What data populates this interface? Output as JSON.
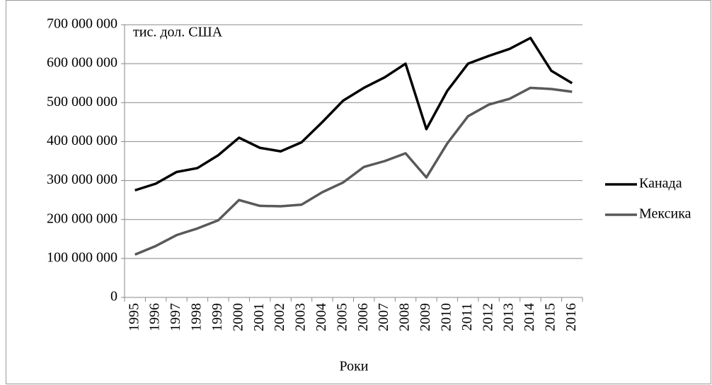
{
  "chart_data": {
    "type": "line",
    "annotation": "тис. дол. США",
    "x_label": "Роки",
    "categories": [
      "1995",
      "1996",
      "1997",
      "1998",
      "1999",
      "2000",
      "2001",
      "2002",
      "2003",
      "2004",
      "2005",
      "2006",
      "2007",
      "2008",
      "2009",
      "2010",
      "2011",
      "2012",
      "2013",
      "2014",
      "2015",
      "2016"
    ],
    "series": [
      {
        "name": "Канада",
        "color": "#000000",
        "values": [
          275000000,
          292000000,
          322000000,
          332000000,
          365000000,
          410000000,
          384000000,
          375000000,
          398000000,
          450000000,
          505000000,
          538000000,
          565000000,
          600000000,
          432000000,
          530000000,
          600000000,
          620000000,
          638000000,
          666000000,
          582000000,
          550000000
        ]
      },
      {
        "name": "Мексика",
        "color": "#595959",
        "values": [
          110000000,
          132000000,
          160000000,
          177000000,
          198000000,
          250000000,
          235000000,
          234000000,
          238000000,
          270000000,
          295000000,
          335000000,
          350000000,
          370000000,
          308000000,
          395000000,
          465000000,
          495000000,
          510000000,
          538000000,
          535000000,
          528000000
        ]
      }
    ],
    "ylim": [
      0,
      700000000
    ],
    "yticks": [
      0,
      {
        "value": 100000000,
        "label": "100 000 000"
      },
      {
        "value": 200000000,
        "label": "200 000 000"
      },
      {
        "value": 300000000,
        "label": "300 000 000"
      },
      {
        "value": 400000000,
        "label": "400 000 000"
      },
      {
        "value": 500000000,
        "label": "500 000 000"
      },
      {
        "value": 600000000,
        "label": "600 000 000"
      },
      {
        "value": 700000000,
        "label": "700 000 000"
      }
    ],
    "grid": true,
    "legend": "right"
  }
}
